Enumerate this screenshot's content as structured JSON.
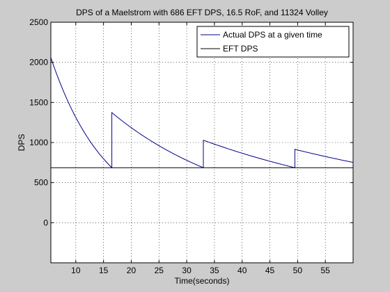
{
  "chart_data": {
    "type": "line",
    "title": "DPS of a Maelstrom with 686 EFT DPS, 16.5 RoF, and 11324 Volley",
    "xlabel": "Time(seconds)",
    "ylabel": "DPS",
    "xlim": [
      5.5,
      60
    ],
    "ylim": [
      -500,
      2500
    ],
    "xticks": [
      10,
      15,
      20,
      25,
      30,
      35,
      40,
      45,
      50,
      55
    ],
    "yticks": [
      0,
      500,
      1000,
      1500,
      2000,
      2500
    ],
    "grid": true,
    "legend_position": "top-right",
    "series": [
      {
        "name": "Actual DPS at a given time",
        "color": "#00008b",
        "segments": [
          {
            "x_start": 5.5,
            "x_end": 16.5,
            "y_start": 2059,
            "y_end": 686
          },
          {
            "x_start": 16.5,
            "x_end": 33.0,
            "y_start": 1373,
            "y_end": 686
          },
          {
            "x_start": 33.0,
            "x_end": 49.5,
            "y_start": 1029,
            "y_end": 686
          },
          {
            "x_start": 49.5,
            "x_end": 60.0,
            "y_start": 915,
            "y_end": 752
          }
        ]
      },
      {
        "name": "EFT DPS",
        "color": "#000000",
        "value": 686
      }
    ]
  }
}
